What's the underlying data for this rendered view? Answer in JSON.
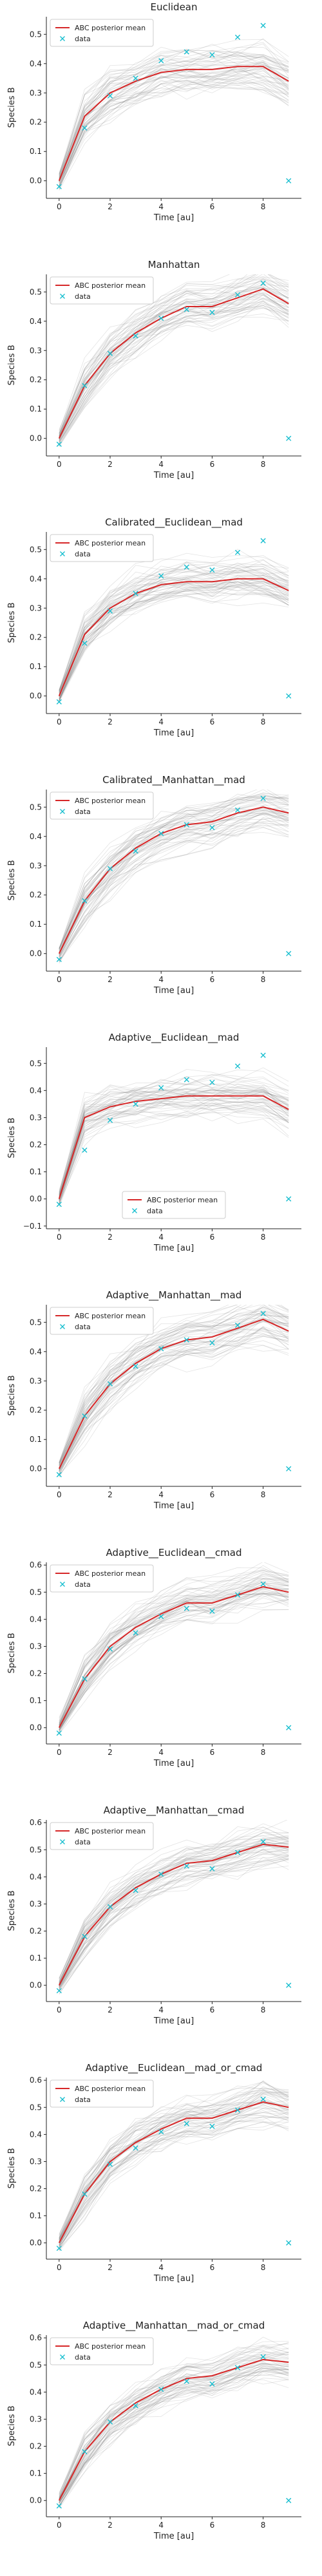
{
  "colors": {
    "mean": "#d62728",
    "data": "#17becf",
    "samples": "#7f7f7f",
    "axis": "#222222"
  },
  "legend_labels": {
    "mean": "ABC posterior mean",
    "data": "data"
  },
  "chart_data": [
    {
      "type": "line",
      "title": "Euclidean",
      "xlabel": "Time [au]",
      "ylabel": "Species B",
      "xlim": [
        -0.5,
        9.5
      ],
      "ylim": [
        -0.06,
        0.56
      ],
      "xticks": [
        0,
        2,
        4,
        6,
        8
      ],
      "yticks": [
        0.0,
        0.1,
        0.2,
        0.3,
        0.4,
        0.5
      ],
      "ytick_labels": [
        "0.0",
        "0.1",
        "0.2",
        "0.3",
        "0.4",
        "0.5"
      ],
      "legend_position": "upper-left",
      "series": [
        {
          "name": "ABC posterior mean",
          "kind": "line",
          "x": [
            0,
            1,
            2,
            3,
            4,
            5,
            6,
            7,
            8,
            9
          ],
          "y": [
            0.0,
            0.22,
            0.3,
            0.34,
            0.37,
            0.38,
            0.38,
            0.39,
            0.39,
            0.34
          ]
        },
        {
          "name": "data",
          "kind": "scatter",
          "x": [
            0,
            1,
            2,
            3,
            4,
            5,
            6,
            7,
            8,
            9
          ],
          "y": [
            -0.02,
            0.18,
            0.29,
            0.35,
            0.41,
            0.44,
            0.43,
            0.49,
            0.53,
            0.0
          ]
        }
      ]
    },
    {
      "type": "line",
      "title": "Manhattan",
      "xlabel": "Time [au]",
      "ylabel": "Species B",
      "xlim": [
        -0.5,
        9.5
      ],
      "ylim": [
        -0.06,
        0.56
      ],
      "xticks": [
        0,
        2,
        4,
        6,
        8
      ],
      "yticks": [
        0.0,
        0.1,
        0.2,
        0.3,
        0.4,
        0.5
      ],
      "ytick_labels": [
        "0.0",
        "0.1",
        "0.2",
        "0.3",
        "0.4",
        "0.5"
      ],
      "legend_position": "upper-left",
      "series": [
        {
          "name": "ABC posterior mean",
          "kind": "line",
          "x": [
            0,
            1,
            2,
            3,
            4,
            5,
            6,
            7,
            8,
            9
          ],
          "y": [
            0.0,
            0.18,
            0.29,
            0.36,
            0.41,
            0.45,
            0.45,
            0.48,
            0.51,
            0.46
          ]
        },
        {
          "name": "data",
          "kind": "scatter",
          "x": [
            0,
            1,
            2,
            3,
            4,
            5,
            6,
            7,
            8,
            9
          ],
          "y": [
            -0.02,
            0.18,
            0.29,
            0.35,
            0.41,
            0.44,
            0.43,
            0.49,
            0.53,
            0.0
          ]
        }
      ]
    },
    {
      "type": "line",
      "title": "Calibrated__Euclidean__mad",
      "xlabel": "Time [au]",
      "ylabel": "Species B",
      "xlim": [
        -0.5,
        9.5
      ],
      "ylim": [
        -0.06,
        0.56
      ],
      "xticks": [
        0,
        2,
        4,
        6,
        8
      ],
      "yticks": [
        0.0,
        0.1,
        0.2,
        0.3,
        0.4,
        0.5
      ],
      "ytick_labels": [
        "0.0",
        "0.1",
        "0.2",
        "0.3",
        "0.4",
        "0.5"
      ],
      "legend_position": "upper-left",
      "series": [
        {
          "name": "ABC posterior mean",
          "kind": "line",
          "x": [
            0,
            1,
            2,
            3,
            4,
            5,
            6,
            7,
            8,
            9
          ],
          "y": [
            0.0,
            0.21,
            0.3,
            0.35,
            0.38,
            0.39,
            0.39,
            0.4,
            0.4,
            0.36
          ]
        },
        {
          "name": "data",
          "kind": "scatter",
          "x": [
            0,
            1,
            2,
            3,
            4,
            5,
            6,
            7,
            8,
            9
          ],
          "y": [
            -0.02,
            0.18,
            0.29,
            0.35,
            0.41,
            0.44,
            0.43,
            0.49,
            0.53,
            0.0
          ]
        }
      ]
    },
    {
      "type": "line",
      "title": "Calibrated__Manhattan__mad",
      "xlabel": "Time [au]",
      "ylabel": "Species B",
      "xlim": [
        -0.5,
        9.5
      ],
      "ylim": [
        -0.06,
        0.56
      ],
      "xticks": [
        0,
        2,
        4,
        6,
        8
      ],
      "yticks": [
        0.0,
        0.1,
        0.2,
        0.3,
        0.4,
        0.5
      ],
      "ytick_labels": [
        "0.0",
        "0.1",
        "0.2",
        "0.3",
        "0.4",
        "0.5"
      ],
      "legend_position": "upper-left",
      "series": [
        {
          "name": "ABC posterior mean",
          "kind": "line",
          "x": [
            0,
            1,
            2,
            3,
            4,
            5,
            6,
            7,
            8,
            9
          ],
          "y": [
            0.0,
            0.18,
            0.29,
            0.36,
            0.41,
            0.44,
            0.45,
            0.48,
            0.5,
            0.48
          ]
        },
        {
          "name": "data",
          "kind": "scatter",
          "x": [
            0,
            1,
            2,
            3,
            4,
            5,
            6,
            7,
            8,
            9
          ],
          "y": [
            -0.02,
            0.18,
            0.29,
            0.35,
            0.41,
            0.44,
            0.43,
            0.49,
            0.53,
            0.0
          ]
        }
      ]
    },
    {
      "type": "line",
      "title": "Adaptive__Euclidean__mad",
      "xlabel": "Time [au]",
      "ylabel": "Species B",
      "xlim": [
        -0.5,
        9.5
      ],
      "ylim": [
        -0.11,
        0.56
      ],
      "xticks": [
        0,
        2,
        4,
        6,
        8
      ],
      "yticks": [
        -0.1,
        0.0,
        0.1,
        0.2,
        0.3,
        0.4,
        0.5
      ],
      "ytick_labels": [
        "−0.1",
        "0.0",
        "0.1",
        "0.2",
        "0.3",
        "0.4",
        "0.5"
      ],
      "legend_position": "lower-center",
      "series": [
        {
          "name": "ABC posterior mean",
          "kind": "line",
          "x": [
            0,
            1,
            2,
            3,
            4,
            5,
            6,
            7,
            8,
            9
          ],
          "y": [
            0.0,
            0.3,
            0.34,
            0.36,
            0.37,
            0.38,
            0.38,
            0.38,
            0.38,
            0.33
          ]
        },
        {
          "name": "data",
          "kind": "scatter",
          "x": [
            0,
            1,
            2,
            3,
            4,
            5,
            6,
            7,
            8,
            9
          ],
          "y": [
            -0.02,
            0.18,
            0.29,
            0.35,
            0.41,
            0.44,
            0.43,
            0.49,
            0.53,
            0.0
          ]
        }
      ]
    },
    {
      "type": "line",
      "title": "Adaptive__Manhattan__mad",
      "xlabel": "Time [au]",
      "ylabel": "Species B",
      "xlim": [
        -0.5,
        9.5
      ],
      "ylim": [
        -0.06,
        0.56
      ],
      "xticks": [
        0,
        2,
        4,
        6,
        8
      ],
      "yticks": [
        0.0,
        0.1,
        0.2,
        0.3,
        0.4,
        0.5
      ],
      "ytick_labels": [
        "0.0",
        "0.1",
        "0.2",
        "0.3",
        "0.4",
        "0.5"
      ],
      "legend_position": "upper-left",
      "series": [
        {
          "name": "ABC posterior mean",
          "kind": "line",
          "x": [
            0,
            1,
            2,
            3,
            4,
            5,
            6,
            7,
            8,
            9
          ],
          "y": [
            0.0,
            0.18,
            0.29,
            0.36,
            0.41,
            0.44,
            0.45,
            0.48,
            0.51,
            0.47
          ]
        },
        {
          "name": "data",
          "kind": "scatter",
          "x": [
            0,
            1,
            2,
            3,
            4,
            5,
            6,
            7,
            8,
            9
          ],
          "y": [
            -0.02,
            0.18,
            0.29,
            0.35,
            0.41,
            0.44,
            0.43,
            0.49,
            0.53,
            0.0
          ]
        }
      ]
    },
    {
      "type": "line",
      "title": "Adaptive__Euclidean__cmad",
      "xlabel": "Time [au]",
      "ylabel": "Species B",
      "xlim": [
        -0.5,
        9.5
      ],
      "ylim": [
        -0.06,
        0.61
      ],
      "xticks": [
        0,
        2,
        4,
        6,
        8
      ],
      "yticks": [
        0.0,
        0.1,
        0.2,
        0.3,
        0.4,
        0.5,
        0.6
      ],
      "ytick_labels": [
        "0.0",
        "0.1",
        "0.2",
        "0.3",
        "0.4",
        "0.5",
        "0.6"
      ],
      "legend_position": "upper-left",
      "series": [
        {
          "name": "ABC posterior mean",
          "kind": "line",
          "x": [
            0,
            1,
            2,
            3,
            4,
            5,
            6,
            7,
            8,
            9
          ],
          "y": [
            0.0,
            0.18,
            0.3,
            0.37,
            0.42,
            0.46,
            0.46,
            0.49,
            0.52,
            0.5
          ]
        },
        {
          "name": "data",
          "kind": "scatter",
          "x": [
            0,
            1,
            2,
            3,
            4,
            5,
            6,
            7,
            8,
            9
          ],
          "y": [
            -0.02,
            0.18,
            0.29,
            0.35,
            0.41,
            0.44,
            0.43,
            0.49,
            0.53,
            0.0
          ]
        }
      ]
    },
    {
      "type": "line",
      "title": "Adaptive__Manhattan__cmad",
      "xlabel": "Time [au]",
      "ylabel": "Species B",
      "xlim": [
        -0.5,
        9.5
      ],
      "ylim": [
        -0.06,
        0.61
      ],
      "xticks": [
        0,
        2,
        4,
        6,
        8
      ],
      "yticks": [
        0.0,
        0.1,
        0.2,
        0.3,
        0.4,
        0.5,
        0.6
      ],
      "ytick_labels": [
        "0.0",
        "0.1",
        "0.2",
        "0.3",
        "0.4",
        "0.5",
        "0.6"
      ],
      "legend_position": "upper-left",
      "series": [
        {
          "name": "ABC posterior mean",
          "kind": "line",
          "x": [
            0,
            1,
            2,
            3,
            4,
            5,
            6,
            7,
            8,
            9
          ],
          "y": [
            0.0,
            0.18,
            0.29,
            0.36,
            0.41,
            0.45,
            0.46,
            0.49,
            0.52,
            0.51
          ]
        },
        {
          "name": "data",
          "kind": "scatter",
          "x": [
            0,
            1,
            2,
            3,
            4,
            5,
            6,
            7,
            8,
            9
          ],
          "y": [
            -0.02,
            0.18,
            0.29,
            0.35,
            0.41,
            0.44,
            0.43,
            0.49,
            0.53,
            0.0
          ]
        }
      ]
    },
    {
      "type": "line",
      "title": "Adaptive__Euclidean__mad_or_cmad",
      "xlabel": "Time [au]",
      "ylabel": "Species B",
      "xlim": [
        -0.5,
        9.5
      ],
      "ylim": [
        -0.06,
        0.61
      ],
      "xticks": [
        0,
        2,
        4,
        6,
        8
      ],
      "yticks": [
        0.0,
        0.1,
        0.2,
        0.3,
        0.4,
        0.5,
        0.6
      ],
      "ytick_labels": [
        "0.0",
        "0.1",
        "0.2",
        "0.3",
        "0.4",
        "0.5",
        "0.6"
      ],
      "legend_position": "upper-left",
      "series": [
        {
          "name": "ABC posterior mean",
          "kind": "line",
          "x": [
            0,
            1,
            2,
            3,
            4,
            5,
            6,
            7,
            8,
            9
          ],
          "y": [
            0.0,
            0.18,
            0.3,
            0.37,
            0.42,
            0.46,
            0.46,
            0.49,
            0.52,
            0.5
          ]
        },
        {
          "name": "data",
          "kind": "scatter",
          "x": [
            0,
            1,
            2,
            3,
            4,
            5,
            6,
            7,
            8,
            9
          ],
          "y": [
            -0.02,
            0.18,
            0.29,
            0.35,
            0.41,
            0.44,
            0.43,
            0.49,
            0.53,
            0.0
          ]
        }
      ]
    },
    {
      "type": "line",
      "title": "Adaptive__Manhattan__mad_or_cmad",
      "xlabel": "Time [au]",
      "ylabel": "Species B",
      "xlim": [
        -0.5,
        9.5
      ],
      "ylim": [
        -0.06,
        0.61
      ],
      "xticks": [
        0,
        2,
        4,
        6,
        8
      ],
      "yticks": [
        0.0,
        0.1,
        0.2,
        0.3,
        0.4,
        0.5,
        0.6
      ],
      "ytick_labels": [
        "0.0",
        "0.1",
        "0.2",
        "0.3",
        "0.4",
        "0.5",
        "0.6"
      ],
      "legend_position": "upper-left",
      "series": [
        {
          "name": "ABC posterior mean",
          "kind": "line",
          "x": [
            0,
            1,
            2,
            3,
            4,
            5,
            6,
            7,
            8,
            9
          ],
          "y": [
            0.0,
            0.18,
            0.29,
            0.36,
            0.41,
            0.45,
            0.46,
            0.49,
            0.52,
            0.51
          ]
        },
        {
          "name": "data",
          "kind": "scatter",
          "x": [
            0,
            1,
            2,
            3,
            4,
            5,
            6,
            7,
            8,
            9
          ],
          "y": [
            -0.02,
            0.18,
            0.29,
            0.35,
            0.41,
            0.44,
            0.43,
            0.49,
            0.53,
            0.0
          ]
        }
      ]
    }
  ]
}
